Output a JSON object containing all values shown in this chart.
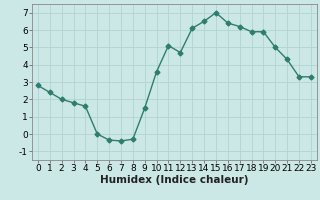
{
  "x": [
    0,
    1,
    2,
    3,
    4,
    5,
    6,
    7,
    8,
    9,
    10,
    11,
    12,
    13,
    14,
    15,
    16,
    17,
    18,
    19,
    20,
    21,
    22,
    23
  ],
  "y": [
    2.8,
    2.4,
    2.0,
    1.8,
    1.6,
    0.0,
    -0.35,
    -0.4,
    -0.3,
    1.5,
    3.6,
    5.1,
    4.7,
    6.1,
    6.5,
    7.0,
    6.4,
    6.2,
    5.9,
    5.9,
    5.0,
    4.3,
    3.3,
    3.3
  ],
  "xlabel": "Humidex (Indice chaleur)",
  "xlim": [
    -0.5,
    23.5
  ],
  "ylim": [
    -1.5,
    7.5
  ],
  "yticks": [
    -1,
    0,
    1,
    2,
    3,
    4,
    5,
    6,
    7
  ],
  "xticks": [
    0,
    1,
    2,
    3,
    4,
    5,
    6,
    7,
    8,
    9,
    10,
    11,
    12,
    13,
    14,
    15,
    16,
    17,
    18,
    19,
    20,
    21,
    22,
    23
  ],
  "line_color": "#2e7d6e",
  "marker": "D",
  "marker_size": 2.5,
  "line_width": 1.0,
  "bg_color": "#cce8e6",
  "grid_color": "#b0d4d2",
  "xlabel_fontsize": 7.5,
  "tick_fontsize": 6.5
}
